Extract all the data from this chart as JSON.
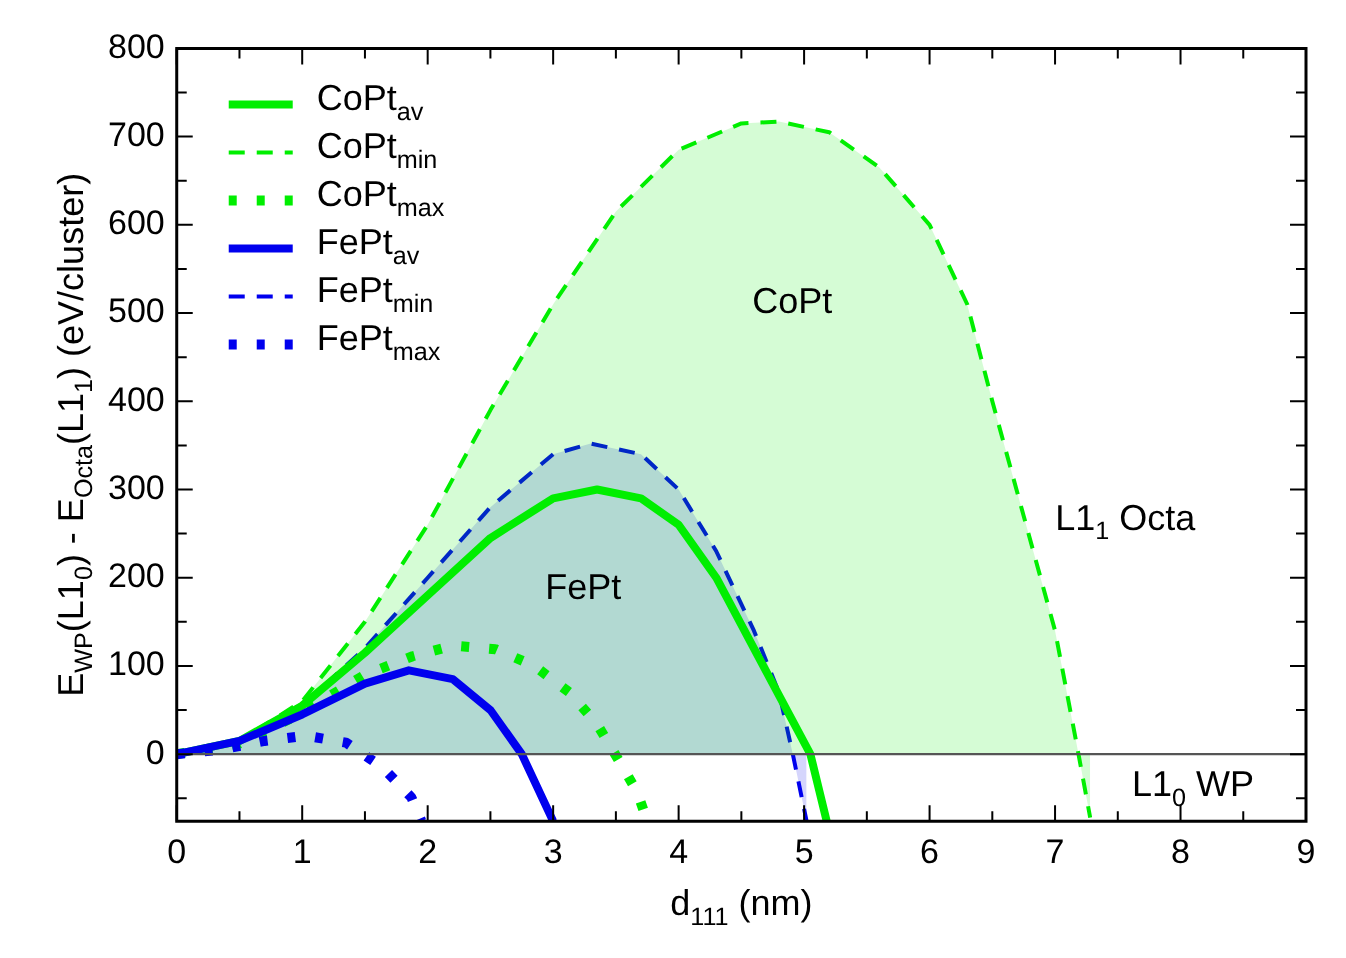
{
  "chart_data": {
    "type": "line",
    "xlabel": "d$_{111}$ (nm)",
    "ylabel": "E$_{WP}$(L1$_{0}$) - E$_{Octa}$(L1$_{1}$) (eV/cluster)",
    "xlim": [
      0,
      9
    ],
    "xticks": [
      0,
      {
        "value": 0.5,
        "label": null
      },
      1,
      {
        "value": 1.5,
        "label": null
      },
      2,
      {
        "value": 2.5,
        "label": null
      },
      3,
      {
        "value": 3.5,
        "label": null
      },
      4,
      {
        "value": 4.5,
        "label": null
      },
      5,
      {
        "value": 5.5,
        "label": null
      },
      6,
      {
        "value": 6.5,
        "label": null
      },
      7,
      {
        "value": 7.5,
        "label": null
      },
      8,
      {
        "value": 8.5,
        "label": null
      },
      9
    ],
    "ylim": [
      -76,
      800
    ],
    "yticks": [
      {
        "value": -50,
        "label": null
      },
      0,
      {
        "value": 50,
        "label": null
      },
      100,
      {
        "value": 150,
        "label": null
      },
      200,
      {
        "value": 250,
        "label": null
      },
      300,
      {
        "value": 350,
        "label": null
      },
      400,
      {
        "value": 450,
        "label": null
      },
      500,
      {
        "value": 550,
        "label": null
      },
      600,
      {
        "value": 650,
        "label": null
      },
      700,
      {
        "value": 750,
        "label": null
      },
      800
    ],
    "grid": false,
    "legend": "top left",
    "series": [
      {
        "name": "CoPt$_{av}$",
        "color": "#00ee00",
        "line_style": "solid",
        "x": [
          0,
          0.5,
          1,
          1.5,
          2,
          2.5,
          3,
          3.35,
          3.7,
          4,
          4.3,
          4.6,
          4.9,
          5.05,
          5.18
        ],
        "values": [
          0,
          15,
          55,
          115,
          180,
          245,
          290,
          300,
          290,
          260,
          200,
          120,
          40,
          0,
          -76
        ]
      },
      {
        "name": "CoPt$_{min}$",
        "type": "area",
        "color": "#00ee00",
        "line_style": "dashed",
        "x": [
          0,
          0.5,
          1,
          1.5,
          2,
          2.5,
          3,
          3.5,
          4,
          4.5,
          4.8,
          5.2,
          5.6,
          6,
          6.3,
          6.5,
          6.75,
          7,
          7.17,
          7.28
        ],
        "values": [
          0,
          15,
          60,
          150,
          260,
          390,
          510,
          615,
          685,
          715,
          717,
          705,
          665,
          600,
          510,
          400,
          270,
          140,
          13,
          -72
        ]
      },
      {
        "name": "CoPt$_{max}$",
        "color": "#00ee00",
        "line_style": "dotted",
        "x": [
          0,
          0.5,
          1,
          1.5,
          1.88,
          2.2,
          2.54,
          2.85,
          3.13,
          3.35,
          3.51,
          3.67,
          3.75
        ],
        "values": [
          0,
          12,
          47,
          90,
          111,
          123,
          119,
          100,
          70,
          34,
          -4,
          -43,
          -76
        ]
      },
      {
        "name": "FePt$_{av}$",
        "color": "#0000ee",
        "line_style": "solid",
        "x": [
          0,
          0.5,
          1,
          1.5,
          1.85,
          2.2,
          2.5,
          2.75,
          3
        ],
        "values": [
          0,
          15,
          45,
          80,
          95,
          85,
          50,
          0,
          -76
        ]
      },
      {
        "name": "FePt$_{min}$",
        "type": "area",
        "color": "#0000ee",
        "line_style": "dashed",
        "x": [
          0,
          0.5,
          1,
          1.5,
          2,
          2.5,
          3,
          3.3,
          3.7,
          4,
          4.3,
          4.6,
          4.8,
          4.91,
          5.02
        ],
        "values": [
          0,
          15,
          55,
          120,
          200,
          280,
          340,
          352,
          340,
          300,
          230,
          140,
          70,
          0,
          -76
        ]
      },
      {
        "name": "FePt$_{max}$",
        "color": "#0000ee",
        "line_style": "dotted",
        "x": [
          0,
          0.35,
          0.7,
          1.03,
          1.35,
          1.64,
          1.87,
          1.95
        ],
        "values": [
          0,
          5,
          15,
          21,
          13,
          -15,
          -49,
          -76
        ]
      }
    ],
    "ref_lines": [
      {
        "axis": "y",
        "value": 0,
        "color": "#555555",
        "line_style": "solid"
      }
    ],
    "annotations": [
      "CoPt",
      "FePt",
      "L1$_{1}$ Octa",
      "L1$_{0}$ WP"
    ]
  }
}
